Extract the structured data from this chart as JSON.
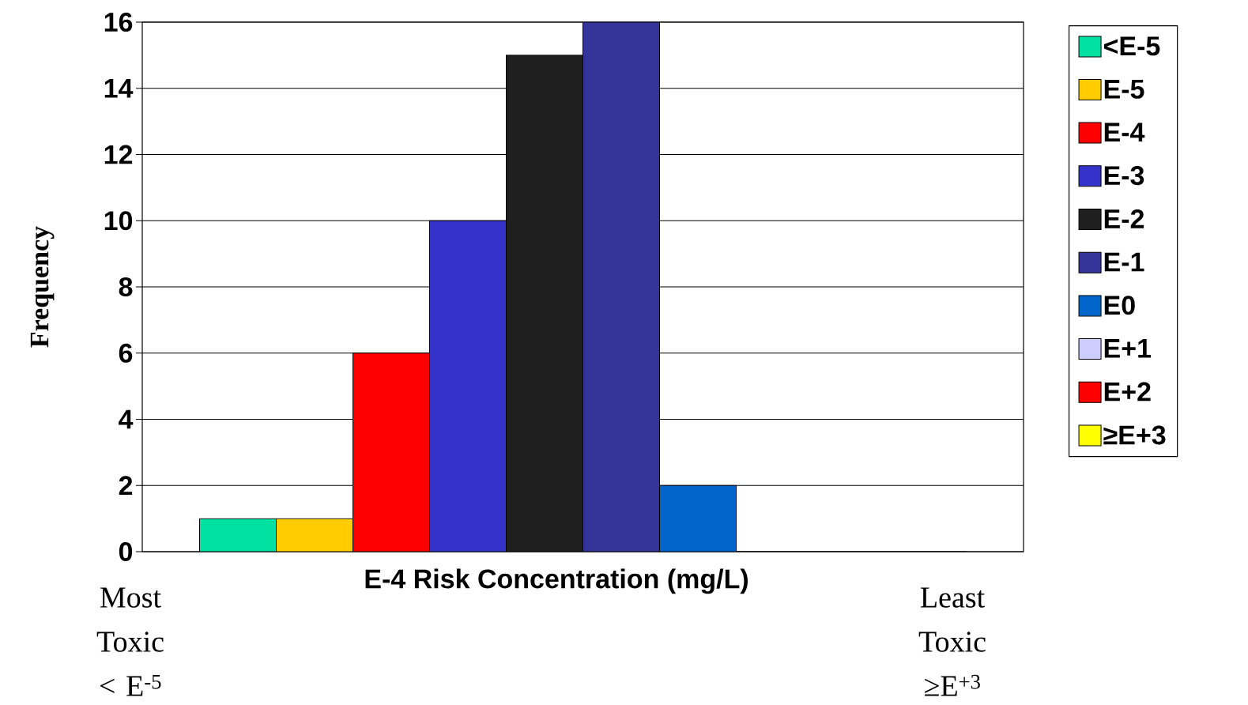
{
  "chart_data": {
    "type": "bar",
    "xlabel": "E-4 Risk Concentration (mg/L)",
    "ylabel": "Frequency",
    "categories": [
      null
    ],
    "series": [
      {
        "name": "<E-5",
        "color": "#00e0a0",
        "values": [
          1
        ]
      },
      {
        "name": "E-5",
        "color": "#ffcc00",
        "values": [
          1
        ]
      },
      {
        "name": "E-4",
        "color": "#ff0000",
        "values": [
          6
        ]
      },
      {
        "name": "E-3",
        "color": "#3333cc",
        "values": [
          10
        ]
      },
      {
        "name": "E-2",
        "color": "#1f1f1f",
        "values": [
          15
        ]
      },
      {
        "name": "E-1",
        "color": "#333399",
        "values": [
          16
        ]
      },
      {
        "name": "E0",
        "color": "#0066cc",
        "values": [
          2
        ]
      },
      {
        "name": "E+1",
        "color": "#ccccff",
        "values": [
          0
        ]
      },
      {
        "name": "E+2",
        "color": "#ff0000",
        "values": [
          0
        ]
      },
      {
        "name": "≥E+3",
        "color": "#ffff00",
        "values": [
          0
        ]
      }
    ],
    "ylim": [
      0,
      16
    ],
    "yticks": [
      0,
      2,
      4,
      6,
      8,
      10,
      12,
      14,
      16
    ],
    "grid": "y",
    "legend": "right",
    "annotations": [
      "Most Toxic < E$^{-5}$",
      "Least Toxic ≥E$^{+3}$"
    ]
  }
}
